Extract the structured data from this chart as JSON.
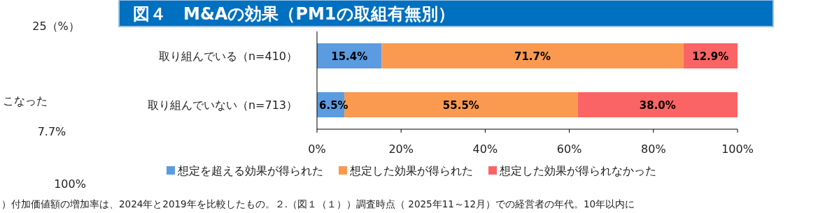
{
  "chart_data": [
    {
      "type": "other",
      "annotations": [
        "25（%）",
        "こなった",
        "7.7%",
        "100%"
      ]
    },
    {
      "type": "bar",
      "title": "図４　M&Aの効果（PM1の取組有無別）",
      "orientation": "horizontal",
      "stacked": true,
      "legend": "bottom",
      "grid": false,
      "categories": [
        "取り組んでいる（n=410）",
        "取り組んでいない（n=713）"
      ],
      "series": [
        {
          "name": "想定を超える効果が得られた",
          "color": "#5b9be0",
          "values": [
            15.4,
            6.5
          ],
          "value_labels": [
            "15.4%",
            "6.5%"
          ]
        },
        {
          "name": "想定した効果が得られた",
          "color": "#fa9a50",
          "values": [
            71.7,
            55.5
          ],
          "value_labels": [
            "71.7%",
            "55.5%"
          ]
        },
        {
          "name": "想定した効果が得られなかった",
          "color": "#fa6464",
          "values": [
            12.9,
            38.0
          ],
          "value_labels": [
            "12.9%",
            "38.0%"
          ]
        }
      ],
      "xlim": [
        0,
        100
      ],
      "xticks": [
        {
          "value": 0,
          "label": "0%"
        },
        {
          "value": 20,
          "label": "20%"
        },
        {
          "value": 40,
          "label": "40%"
        },
        {
          "value": 60,
          "label": "60%"
        },
        {
          "value": 80,
          "label": "80%"
        },
        {
          "value": 100,
          "label": "100%"
        }
      ],
      "annotations": [
        "）付加価値額の増加率は、2024年と2019年を比較したもの。２.（図１（１））調査時点（ 2025年11～12月）での経営者の年代。10年以内に"
      ]
    }
  ]
}
